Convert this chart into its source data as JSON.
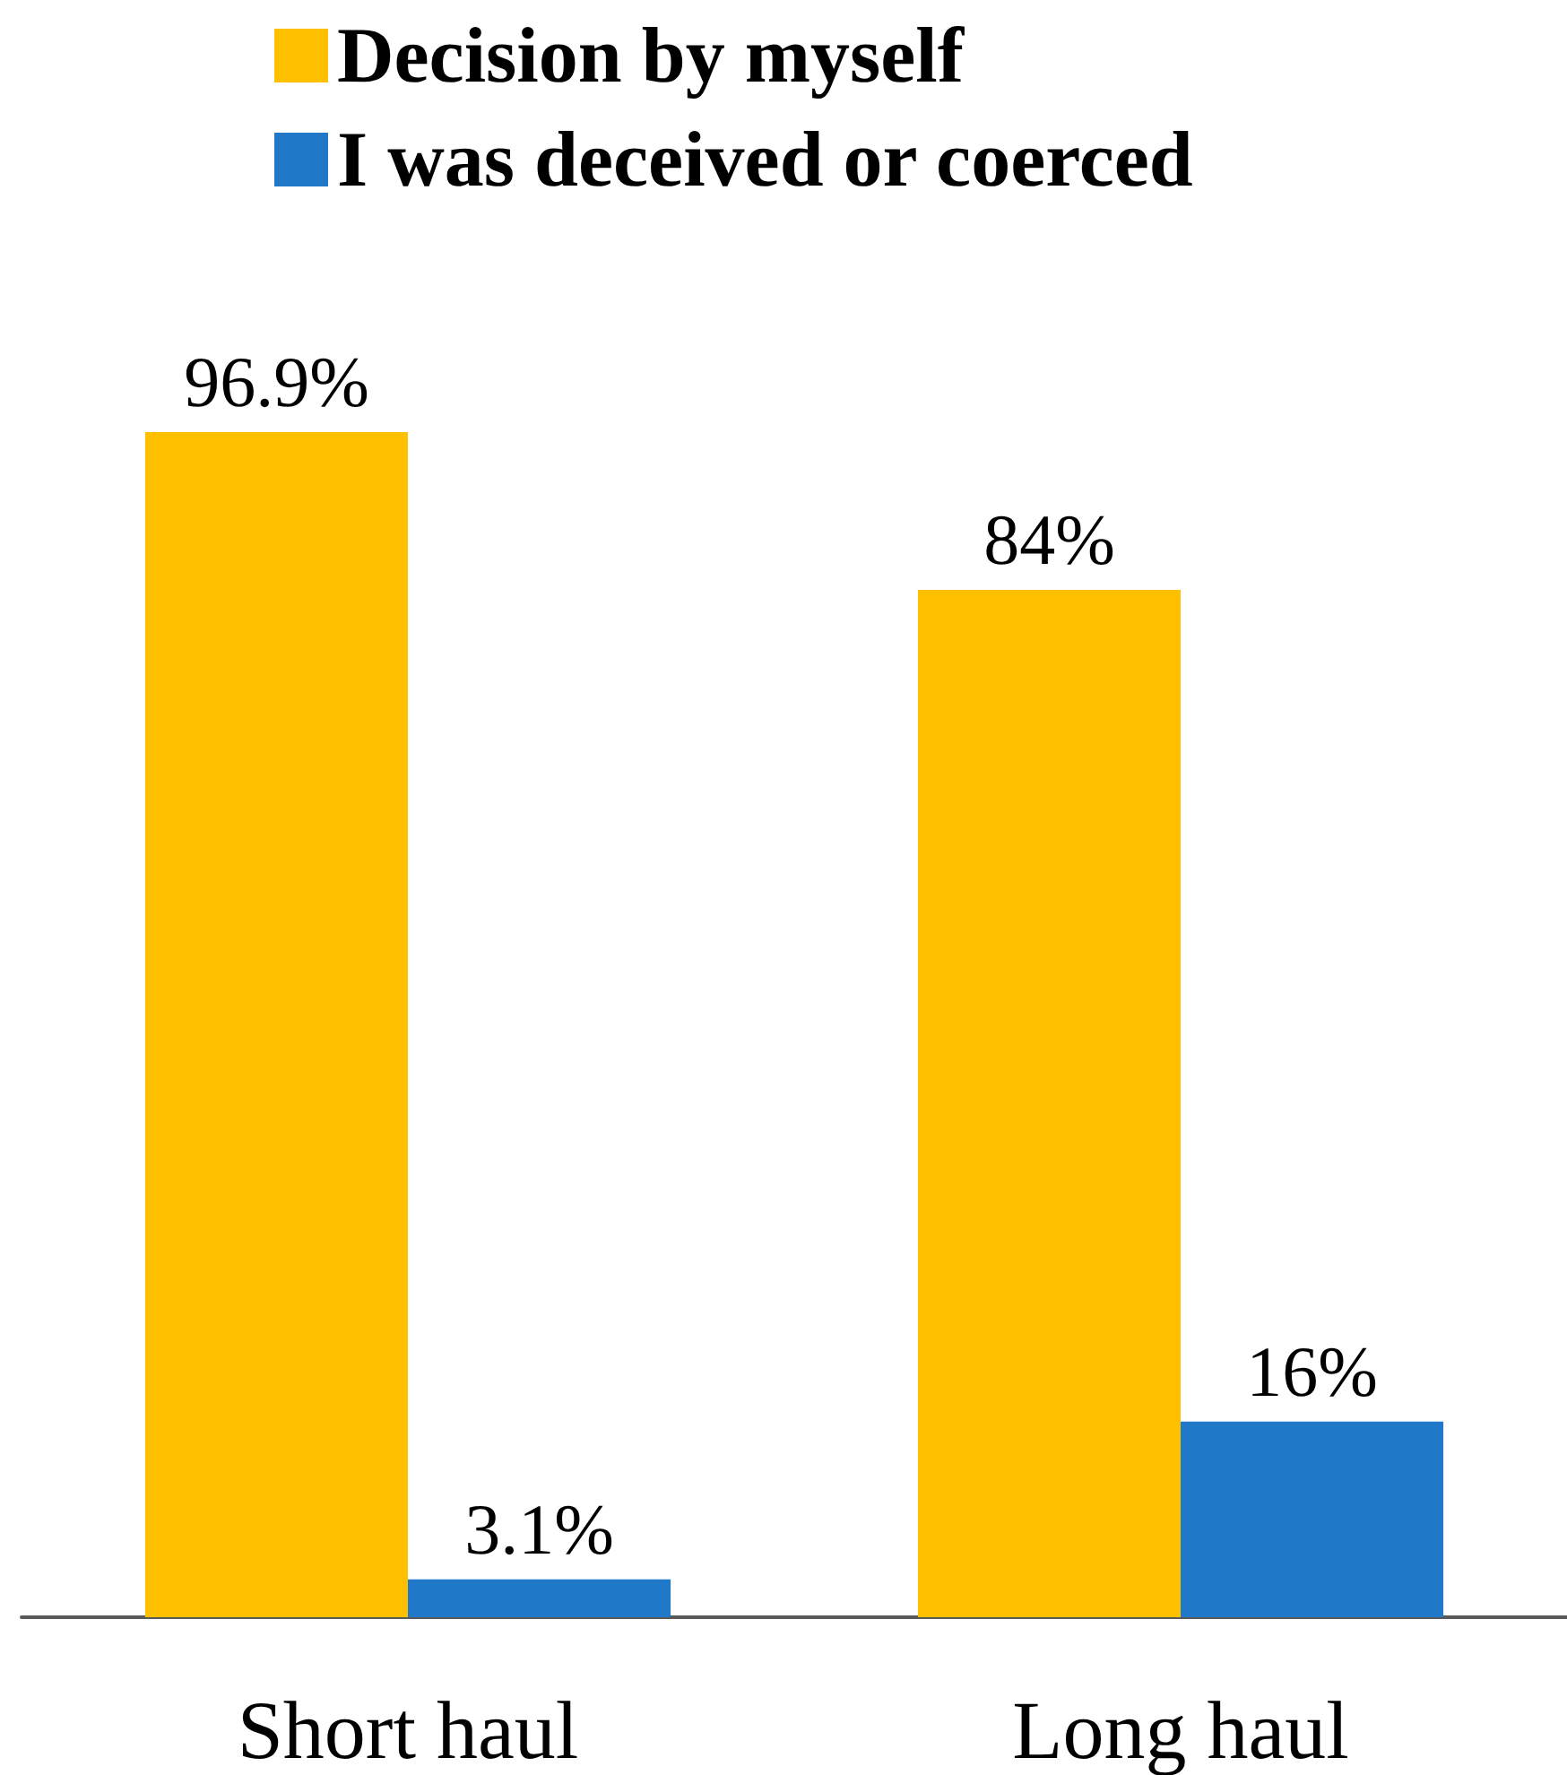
{
  "chart_data": {
    "type": "bar",
    "categories": [
      "Short haul",
      "Long haul"
    ],
    "series": [
      {
        "name": "Decision by myself",
        "color": "#ffc000",
        "values": [
          96.9,
          84
        ],
        "value_labels": [
          "96.9%",
          "84%"
        ]
      },
      {
        "name": "I was deceived or coerced",
        "color": "#1f78c8",
        "values": [
          3.1,
          16
        ],
        "value_labels": [
          "3.1%",
          "16%"
        ]
      }
    ],
    "legend": "top"
  }
}
